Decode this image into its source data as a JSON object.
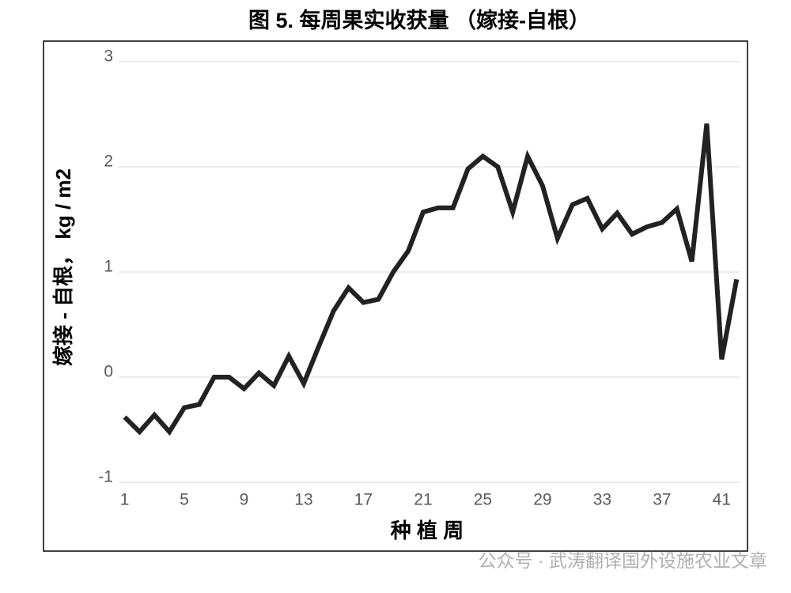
{
  "chart_data": {
    "type": "line",
    "title": "图 5. 每周果实收获量 （嫁接-自根）",
    "x_label": "种 植 周",
    "y_label": "嫁接 - 自根， kg / m2",
    "watermark": "公众号 · 武涛翻译国外设施农业文章",
    "x": [
      1,
      2,
      3,
      4,
      5,
      6,
      7,
      8,
      9,
      10,
      11,
      12,
      13,
      14,
      15,
      16,
      17,
      18,
      19,
      20,
      21,
      22,
      23,
      24,
      25,
      26,
      27,
      28,
      29,
      30,
      31,
      32,
      33,
      34,
      35,
      36,
      37,
      38,
      39,
      40,
      41,
      42
    ],
    "series": [
      {
        "name": "嫁接-自根",
        "color": "#222222",
        "values": [
          -0.38,
          -0.52,
          -0.36,
          -0.52,
          -0.29,
          -0.26,
          0.0,
          0.0,
          -0.11,
          0.04,
          -0.08,
          0.2,
          -0.06,
          0.29,
          0.63,
          0.85,
          0.71,
          0.74,
          1.0,
          1.2,
          1.57,
          1.61,
          1.61,
          1.98,
          2.1,
          2.0,
          1.57,
          2.1,
          1.82,
          1.32,
          1.64,
          1.7,
          1.41,
          1.56,
          1.36,
          1.43,
          1.47,
          1.6,
          1.1,
          2.41,
          0.17,
          0.93
        ]
      }
    ],
    "xlim": [
      0.6,
      42.2
    ],
    "xticks": [
      1,
      5,
      9,
      13,
      17,
      21,
      25,
      29,
      33,
      37,
      41
    ],
    "ylim": [
      -1,
      3
    ],
    "yticks": [
      -1,
      0,
      1,
      2,
      3
    ],
    "grid": true
  }
}
